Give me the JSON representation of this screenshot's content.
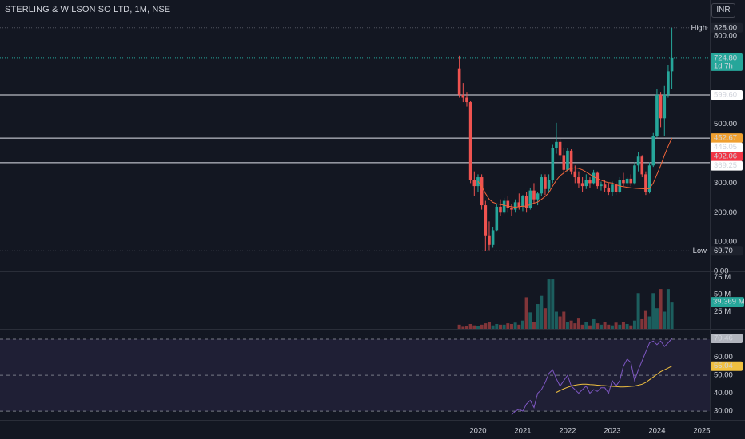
{
  "header": {
    "title": "STERLING & WILSON SO LTD, 1M, NSE",
    "currency": "INR"
  },
  "chart_data": [
    {
      "type": "candlestick",
      "x": [
        2019.583,
        2019.667,
        2019.75,
        2019.833,
        2019.917,
        2020.0,
        2020.083,
        2020.167,
        2020.25,
        2020.333,
        2020.417,
        2020.5,
        2020.583,
        2020.667,
        2020.75,
        2020.833,
        2020.917,
        2021.0,
        2021.083,
        2021.167,
        2021.25,
        2021.333,
        2021.417,
        2021.5,
        2021.583,
        2021.667,
        2021.75,
        2021.833,
        2021.917,
        2022.0,
        2022.083,
        2022.167,
        2022.25,
        2022.333,
        2022.417,
        2022.5,
        2022.583,
        2022.667,
        2022.75,
        2022.833,
        2022.917,
        2023.0,
        2023.083,
        2023.167,
        2023.25,
        2023.333,
        2023.417,
        2023.5,
        2023.583,
        2023.667,
        2023.75,
        2023.833,
        2023.917,
        2024.0,
        2024.083,
        2024.167,
        2024.25,
        2024.333
      ],
      "open": [
        690,
        600,
        590,
        575,
        310,
        290,
        320,
        225,
        120,
        90,
        140,
        220,
        200,
        240,
        215,
        210,
        235,
        220,
        255,
        215,
        275,
        245,
        265,
        320,
        280,
        310,
        420,
        440,
        395,
        345,
        410,
        340,
        320,
        300,
        290,
        310,
        300,
        335,
        290,
        295,
        285,
        270,
        295,
        270,
        310,
        300,
        315,
        300,
        360,
        390,
        330,
        270,
        360,
        460,
        600,
        520,
        600,
        680
      ],
      "high": [
        733,
        640,
        610,
        580,
        340,
        330,
        330,
        240,
        170,
        150,
        230,
        245,
        250,
        255,
        230,
        245,
        265,
        260,
        270,
        285,
        300,
        270,
        330,
        330,
        330,
        430,
        505,
        450,
        420,
        420,
        415,
        360,
        340,
        320,
        330,
        320,
        345,
        340,
        305,
        310,
        300,
        305,
        305,
        320,
        335,
        320,
        330,
        370,
        405,
        395,
        340,
        370,
        470,
        620,
        610,
        630,
        700,
        828
      ],
      "low": [
        590,
        575,
        560,
        300,
        255,
        270,
        210,
        69.7,
        72,
        80,
        135,
        190,
        195,
        200,
        190,
        200,
        210,
        205,
        200,
        210,
        230,
        225,
        255,
        260,
        270,
        300,
        400,
        380,
        330,
        340,
        330,
        300,
        285,
        270,
        280,
        285,
        295,
        280,
        275,
        270,
        260,
        255,
        260,
        265,
        290,
        285,
        290,
        295,
        340,
        320,
        260,
        265,
        355,
        455,
        490,
        460,
        590,
        620
      ],
      "close": [
        600,
        590,
        575,
        310,
        290,
        320,
        225,
        120,
        90,
        140,
        220,
        200,
        240,
        215,
        210,
        235,
        220,
        255,
        215,
        275,
        245,
        265,
        320,
        280,
        310,
        420,
        440,
        395,
        345,
        410,
        340,
        320,
        300,
        290,
        310,
        300,
        335,
        290,
        295,
        285,
        270,
        295,
        270,
        310,
        300,
        315,
        300,
        360,
        390,
        330,
        270,
        360,
        460,
        600,
        520,
        600,
        680,
        724.8
      ],
      "up_color": "#26a69a",
      "down_color": "#ef5350",
      "xlim": [
        2009.32,
        2025.18
      ],
      "xticks": [
        2020,
        2021,
        2022,
        2023,
        2024,
        2025
      ],
      "ylim": [
        0,
        922.4
      ],
      "yticks": [
        {
          "value": 0,
          "label": "0.00"
        },
        {
          "value": 100,
          "label": "100.00"
        },
        {
          "value": 200,
          "label": "200.00"
        },
        {
          "value": 300,
          "label": "300.00"
        },
        {
          "value": 500,
          "label": "500.00"
        },
        {
          "value": 800,
          "label": "800.00"
        }
      ],
      "overlay": {
        "color": "#f0653a",
        "values": [
          null,
          null,
          null,
          null,
          null,
          306,
          290,
          265,
          245,
          235,
          230,
          228,
          225,
          222,
          220,
          218,
          220,
          222,
          222,
          228,
          232,
          236,
          245,
          255,
          268,
          290,
          310,
          325,
          335,
          345,
          350,
          352,
          350,
          345,
          338,
          330,
          322,
          315,
          310,
          305,
          302,
          300,
          295,
          290,
          288,
          286,
          284,
          283,
          282,
          281,
          280,
          282,
          300,
          330,
          360,
          395,
          425,
          452.67
        ]
      },
      "levels": [
        {
          "value": 599.6,
          "label": "599.60",
          "color": "#ffffff",
          "text_color": "#131722",
          "line": true
        },
        {
          "value": 452.67,
          "label": "452.67",
          "color": "#f0a030",
          "text_color": "#131722",
          "line": true
        },
        {
          "value": 446.05,
          "label": "446.05",
          "color": "#ffffff",
          "text_color": "#131722",
          "line": false
        },
        {
          "value": 402.06,
          "label": "402.06",
          "color": "#f23645",
          "text_color": "#ffffff",
          "line": false
        },
        {
          "value": 369.25,
          "label": "369.25",
          "color": "#ffffff",
          "text_color": "#131722",
          "line": true
        }
      ],
      "extremes": [
        {
          "name": "High",
          "value": 828,
          "label": "828.00"
        },
        {
          "name": "Low",
          "value": 69.7,
          "label": "69.70"
        }
      ],
      "last": {
        "value": 724.8,
        "label": "724.80",
        "countdown": "1d 7h",
        "color": "#26a69a"
      }
    },
    {
      "type": "bar",
      "values": [
        6,
        3,
        4,
        7,
        5,
        4,
        6,
        8,
        10,
        5,
        7,
        6,
        6,
        8,
        7,
        9,
        6,
        12,
        46,
        24,
        10,
        36,
        48,
        30,
        72,
        72,
        25,
        18,
        25,
        10,
        12,
        8,
        15,
        6,
        10,
        5,
        14,
        8,
        6,
        10,
        6,
        5,
        9,
        6,
        10,
        7,
        5,
        12,
        52,
        14,
        26,
        18,
        52,
        30,
        58,
        25,
        58,
        39.369
      ],
      "up_color": "rgba(38,166,154,0.5)",
      "down_color": "rgba(239,83,80,0.5)",
      "ylim": [
        0,
        83.7
      ],
      "yticks": [
        {
          "value": 25,
          "label": "25 M"
        },
        {
          "value": 50,
          "label": "50 M"
        },
        {
          "value": 75,
          "label": "75 M"
        }
      ],
      "last": {
        "value": 39.369,
        "label": "39.369 M",
        "color": "#26a69a"
      }
    },
    {
      "type": "line",
      "series": [
        {
          "color": "#7e57c2",
          "values": [
            null,
            null,
            null,
            null,
            null,
            null,
            null,
            null,
            null,
            null,
            null,
            null,
            null,
            null,
            28,
            30,
            31,
            30,
            34,
            36,
            32,
            40,
            42,
            46,
            51,
            53,
            48,
            44,
            47,
            50,
            44,
            42,
            40,
            42,
            44,
            40,
            42,
            41,
            43,
            43,
            40,
            47,
            44,
            47,
            55,
            59,
            57,
            47,
            53,
            58,
            63,
            68,
            69,
            67,
            69,
            66,
            68,
            70.46
          ],
          "badge_color": "#b2b5be"
        },
        {
          "color": "#f0c040",
          "values": [
            null,
            null,
            null,
            null,
            null,
            null,
            null,
            null,
            null,
            null,
            null,
            null,
            null,
            null,
            null,
            null,
            null,
            null,
            null,
            null,
            null,
            null,
            null,
            null,
            null,
            null,
            40.5,
            41.5,
            42.5,
            43.3,
            44,
            44.5,
            44.8,
            45,
            45,
            44.8,
            44.7,
            44.5,
            44.3,
            44.2,
            44,
            43.8,
            43.7,
            43.5,
            43.5,
            43.6,
            43.8,
            44,
            44.5,
            45,
            46,
            47.5,
            49,
            50.5,
            52,
            53,
            54,
            55.04
          ],
          "badge_color": "#f0c040"
        }
      ],
      "ylim": [
        25.6,
        75.8
      ],
      "yticks": [
        {
          "value": 30,
          "label": "30.00"
        },
        {
          "value": 40,
          "label": "40.00"
        },
        {
          "value": 50,
          "label": "50.00"
        },
        {
          "value": 60,
          "label": "60.00"
        }
      ],
      "levels": [
        70,
        50,
        30
      ],
      "band_color": "rgba(126,87,194,0.12)"
    }
  ]
}
